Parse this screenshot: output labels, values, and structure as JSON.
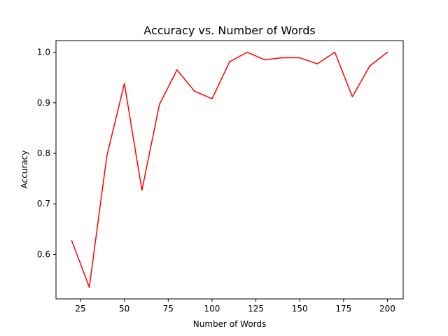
{
  "chart_data": {
    "type": "line",
    "title": "Accuracy vs. Number of Words",
    "xlabel": "Number of Words",
    "ylabel": "Accuracy",
    "xlim": [
      11,
      209
    ],
    "ylim": [
      0.512,
      1.023
    ],
    "xticks": [
      25,
      50,
      75,
      100,
      125,
      150,
      175,
      200
    ],
    "yticks": [
      0.6,
      0.7,
      0.8,
      0.9,
      1.0
    ],
    "xtick_labels": [
      "25",
      "50",
      "75",
      "100",
      "125",
      "150",
      "175",
      "200"
    ],
    "ytick_labels": [
      "0.6",
      "0.7",
      "0.8",
      "0.9",
      "1.0"
    ],
    "grid": false,
    "series": [
      {
        "color": "#ff0000",
        "x": [
          20,
          30,
          40,
          50,
          60,
          70,
          80,
          90,
          100,
          110,
          120,
          130,
          140,
          150,
          160,
          170,
          180,
          190,
          200
        ],
        "y": [
          0.627,
          0.535,
          0.795,
          0.938,
          0.727,
          0.897,
          0.965,
          0.923,
          0.908,
          0.981,
          1.0,
          0.985,
          0.989,
          0.989,
          0.977,
          1.0,
          0.912,
          0.973,
          1.0
        ]
      }
    ]
  }
}
